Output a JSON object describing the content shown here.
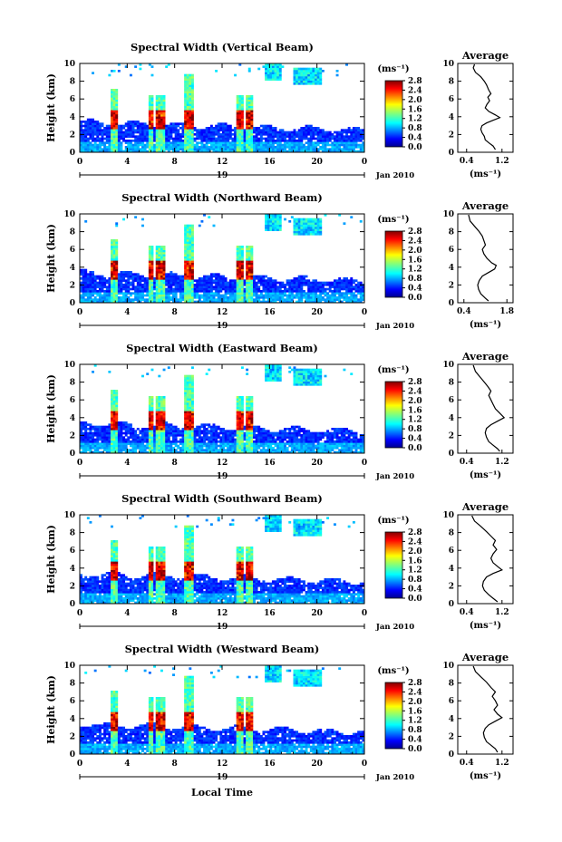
{
  "chart_data": [
    {
      "type": "heatmap",
      "title": "Spectral Width (Vertical Beam)",
      "ylabel": "Height (km)",
      "x_ticks": [
        "0",
        "4",
        "8",
        "12",
        "16",
        "20",
        "0"
      ],
      "xlim": [
        0,
        24
      ],
      "y_ticks": [
        "0",
        "2",
        "4",
        "6",
        "8",
        "10"
      ],
      "ylim": [
        0,
        10
      ],
      "day_label": "19",
      "date_label": "Jan 2010",
      "colorbar": {
        "unit": "(ms⁻¹)",
        "ticks": [
          "0.0",
          "0.4",
          "0.8",
          "1.2",
          "1.6",
          "2.0",
          "2.4",
          "2.8"
        ],
        "range": [
          0,
          2.8
        ]
      },
      "profile": {
        "title": "Average",
        "xlabel": "(ms⁻¹)",
        "x_ticks": [
          "0.4",
          "1.2"
        ],
        "xlim": [
          0.2,
          1.45
        ],
        "y_ticks": [
          "0",
          "2",
          "4",
          "6",
          "8",
          "10"
        ],
        "ylim": [
          0,
          10
        ],
        "points": [
          [
            0.58,
            9.9
          ],
          [
            0.55,
            9.5
          ],
          [
            0.6,
            9.0
          ],
          [
            0.72,
            8.5
          ],
          [
            0.8,
            8.0
          ],
          [
            0.85,
            7.6
          ],
          [
            0.9,
            7.0
          ],
          [
            0.95,
            6.6
          ],
          [
            0.88,
            6.2
          ],
          [
            0.92,
            5.8
          ],
          [
            0.86,
            5.4
          ],
          [
            0.82,
            5.0
          ],
          [
            0.9,
            4.6
          ],
          [
            1.05,
            4.2
          ],
          [
            1.15,
            3.9
          ],
          [
            1.0,
            3.6
          ],
          [
            0.85,
            3.3
          ],
          [
            0.75,
            3.0
          ],
          [
            0.72,
            2.6
          ],
          [
            0.75,
            2.2
          ],
          [
            0.8,
            1.8
          ],
          [
            0.82,
            1.4
          ],
          [
            0.92,
            1.0
          ],
          [
            1.0,
            0.7
          ],
          [
            1.05,
            0.3
          ]
        ]
      }
    },
    {
      "type": "heatmap",
      "title": "Spectral Width (Northward Beam)",
      "ylabel": "Height (km)",
      "x_ticks": [
        "0",
        "4",
        "8",
        "12",
        "16",
        "20",
        "0"
      ],
      "xlim": [
        0,
        24
      ],
      "y_ticks": [
        "0",
        "2",
        "4",
        "6",
        "8",
        "10"
      ],
      "ylim": [
        0,
        10
      ],
      "day_label": "19",
      "date_label": "Jan 2010",
      "colorbar": {
        "unit": "(ms⁻¹)",
        "ticks": [
          "0.0",
          "0.4",
          "0.8",
          "1.2",
          "1.6",
          "2.0",
          "2.4",
          "2.8"
        ],
        "range": [
          0,
          2.8
        ]
      },
      "profile": {
        "title": "Average",
        "xlabel": "(ms⁻¹)",
        "x_ticks": [
          "0.4",
          "1.8"
        ],
        "xlim": [
          0.2,
          2.0
        ],
        "y_ticks": [
          "0",
          "2",
          "4",
          "6",
          "8",
          "10"
        ],
        "ylim": [
          0,
          10
        ],
        "points": [
          [
            0.55,
            9.9
          ],
          [
            0.6,
            9.2
          ],
          [
            0.75,
            8.6
          ],
          [
            0.9,
            8.0
          ],
          [
            1.0,
            7.5
          ],
          [
            1.05,
            7.0
          ],
          [
            1.1,
            6.5
          ],
          [
            1.0,
            6.0
          ],
          [
            1.05,
            5.5
          ],
          [
            1.15,
            5.0
          ],
          [
            1.3,
            4.5
          ],
          [
            1.45,
            4.2
          ],
          [
            1.4,
            3.8
          ],
          [
            1.2,
            3.4
          ],
          [
            1.0,
            3.0
          ],
          [
            0.9,
            2.5
          ],
          [
            0.85,
            2.0
          ],
          [
            0.88,
            1.5
          ],
          [
            0.95,
            1.0
          ],
          [
            1.1,
            0.5
          ],
          [
            1.2,
            0.2
          ]
        ]
      }
    },
    {
      "type": "heatmap",
      "title": "Spectral Width (Eastward Beam)",
      "ylabel": "Height (km)",
      "x_ticks": [
        "0",
        "4",
        "8",
        "12",
        "16",
        "20",
        "0"
      ],
      "xlim": [
        0,
        24
      ],
      "y_ticks": [
        "0",
        "2",
        "4",
        "6",
        "8",
        "10"
      ],
      "ylim": [
        0,
        10
      ],
      "day_label": "19",
      "date_label": "Jan 2010",
      "colorbar": {
        "unit": "(ms⁻¹)",
        "ticks": [
          "0.0",
          "0.4",
          "0.8",
          "1.2",
          "1.6",
          "2.0",
          "2.4",
          "2.8"
        ],
        "range": [
          0,
          2.8
        ]
      },
      "profile": {
        "title": "Average",
        "xlabel": "(ms⁻¹)",
        "x_ticks": [
          "0.4",
          "1.2"
        ],
        "xlim": [
          0.2,
          1.45
        ],
        "y_ticks": [
          "0",
          "2",
          "4",
          "6",
          "8",
          "10"
        ],
        "ylim": [
          0,
          10
        ],
        "points": [
          [
            0.55,
            9.9
          ],
          [
            0.6,
            9.2
          ],
          [
            0.7,
            8.6
          ],
          [
            0.8,
            8.0
          ],
          [
            0.88,
            7.5
          ],
          [
            0.95,
            7.0
          ],
          [
            0.9,
            6.5
          ],
          [
            0.95,
            6.0
          ],
          [
            1.0,
            5.5
          ],
          [
            1.05,
            5.0
          ],
          [
            1.15,
            4.5
          ],
          [
            1.25,
            4.0
          ],
          [
            1.1,
            3.6
          ],
          [
            0.95,
            3.2
          ],
          [
            0.85,
            2.8
          ],
          [
            0.82,
            2.3
          ],
          [
            0.85,
            1.8
          ],
          [
            0.9,
            1.3
          ],
          [
            1.0,
            0.9
          ],
          [
            1.1,
            0.5
          ],
          [
            1.15,
            0.2
          ]
        ]
      }
    },
    {
      "type": "heatmap",
      "title": "Spectral Width (Southward Beam)",
      "ylabel": "Height (km)",
      "x_ticks": [
        "0",
        "4",
        "8",
        "12",
        "16",
        "20",
        "0"
      ],
      "xlim": [
        0,
        24
      ],
      "y_ticks": [
        "0",
        "2",
        "4",
        "6",
        "8",
        "10"
      ],
      "ylim": [
        0,
        10
      ],
      "day_label": "19",
      "date_label": "Jan 2010",
      "colorbar": {
        "unit": "(ms⁻¹)",
        "ticks": [
          "0.0",
          "0.4",
          "0.8",
          "1.2",
          "1.6",
          "2.0",
          "2.4",
          "2.8"
        ],
        "range": [
          0,
          2.8
        ]
      },
      "profile": {
        "title": "Average",
        "xlabel": "(ms⁻¹)",
        "x_ticks": [
          "0.4",
          "1.2"
        ],
        "xlim": [
          0.2,
          1.45
        ],
        "y_ticks": [
          "0",
          "2",
          "4",
          "6",
          "8",
          "10"
        ],
        "ylim": [
          0,
          10
        ],
        "points": [
          [
            0.52,
            9.9
          ],
          [
            0.58,
            9.3
          ],
          [
            0.72,
            8.7
          ],
          [
            0.85,
            8.1
          ],
          [
            0.95,
            7.6
          ],
          [
            1.05,
            7.1
          ],
          [
            1.0,
            6.6
          ],
          [
            1.08,
            6.1
          ],
          [
            1.0,
            5.6
          ],
          [
            0.95,
            5.1
          ],
          [
            1.0,
            4.6
          ],
          [
            1.12,
            4.1
          ],
          [
            1.2,
            3.8
          ],
          [
            1.0,
            3.4
          ],
          [
            0.85,
            3.0
          ],
          [
            0.78,
            2.5
          ],
          [
            0.76,
            2.0
          ],
          [
            0.8,
            1.5
          ],
          [
            0.9,
            1.0
          ],
          [
            1.0,
            0.6
          ],
          [
            1.1,
            0.2
          ]
        ]
      }
    },
    {
      "type": "heatmap",
      "title": "Spectral Width (Westward Beam)",
      "ylabel": "Height (km)",
      "x_ticks": [
        "0",
        "4",
        "8",
        "12",
        "16",
        "20",
        "0"
      ],
      "xlim": [
        0,
        24
      ],
      "y_ticks": [
        "0",
        "2",
        "4",
        "6",
        "8",
        "10"
      ],
      "ylim": [
        0,
        10
      ],
      "day_label": "19",
      "date_label": "Jan 2010",
      "colorbar": {
        "unit": "(ms⁻¹)",
        "ticks": [
          "0.0",
          "0.4",
          "0.8",
          "1.2",
          "1.6",
          "2.0",
          "2.4",
          "2.8"
        ],
        "range": [
          0,
          2.8
        ]
      },
      "profile": {
        "title": "Average",
        "xlabel": "(ms⁻¹)",
        "x_ticks": [
          "0.4",
          "1.2"
        ],
        "xlim": [
          0.2,
          1.45
        ],
        "y_ticks": [
          "0",
          "2",
          "4",
          "6",
          "8",
          "10"
        ],
        "ylim": [
          0,
          10
        ],
        "points": [
          [
            0.55,
            9.9
          ],
          [
            0.6,
            9.3
          ],
          [
            0.72,
            8.7
          ],
          [
            0.85,
            8.1
          ],
          [
            0.95,
            7.5
          ],
          [
            1.05,
            7.0
          ],
          [
            0.98,
            6.5
          ],
          [
            1.05,
            6.0
          ],
          [
            1.1,
            5.5
          ],
          [
            1.02,
            5.0
          ],
          [
            1.1,
            4.5
          ],
          [
            1.2,
            4.1
          ],
          [
            1.05,
            3.7
          ],
          [
            0.9,
            3.3
          ],
          [
            0.82,
            2.9
          ],
          [
            0.78,
            2.4
          ],
          [
            0.8,
            1.9
          ],
          [
            0.85,
            1.4
          ],
          [
            0.95,
            1.0
          ],
          [
            1.05,
            0.6
          ],
          [
            1.1,
            0.2
          ]
        ]
      }
    }
  ],
  "x_axis_label": "Local Time"
}
